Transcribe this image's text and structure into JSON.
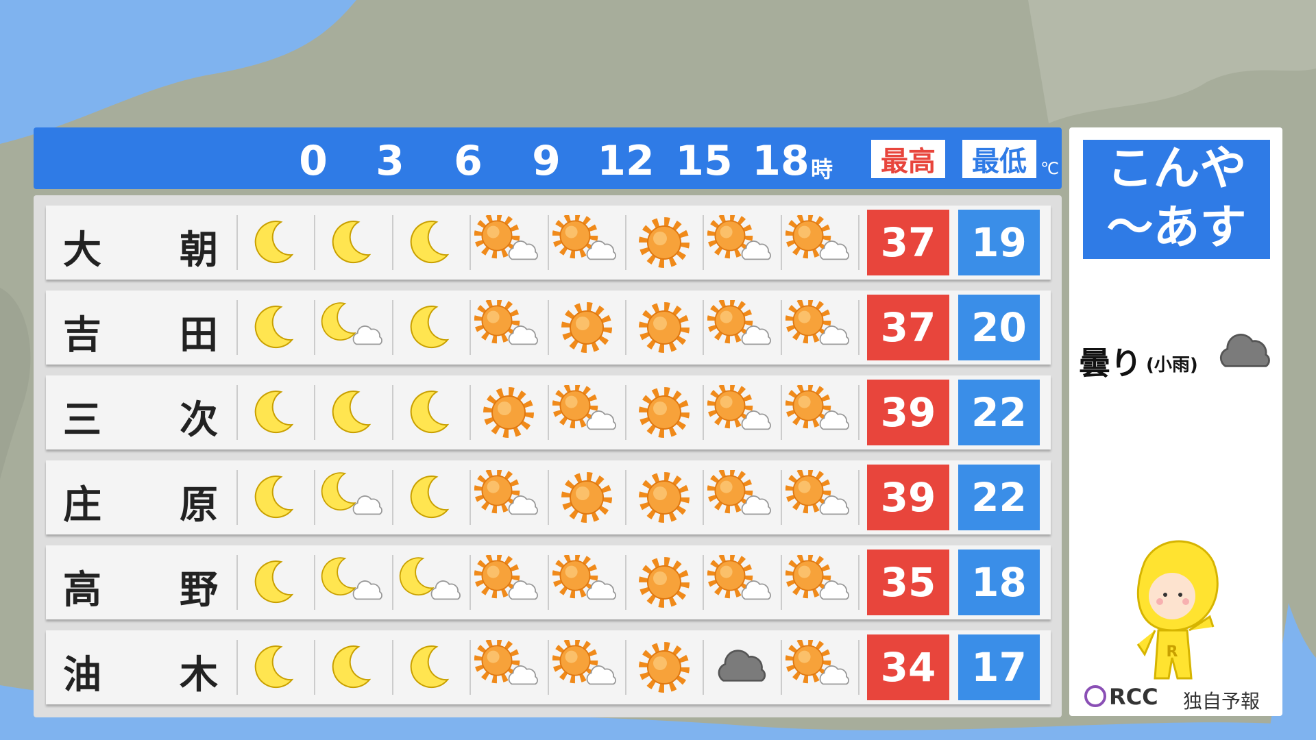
{
  "header": {
    "hours": [
      0,
      3,
      6,
      9,
      12,
      15,
      18
    ],
    "hour_unit": "時",
    "high_label": "最高",
    "low_label": "最低",
    "temp_unit": "℃"
  },
  "rows": [
    {
      "name": [
        "大",
        "朝"
      ],
      "high": 37,
      "low": 19
    },
    {
      "name": [
        "吉",
        "田"
      ],
      "high": 37,
      "low": 20
    },
    {
      "name": [
        "三",
        "次"
      ],
      "high": 39,
      "low": 22
    },
    {
      "name": [
        "庄",
        "原"
      ],
      "high": 39,
      "low": 22
    },
    {
      "name": [
        "高",
        "野"
      ],
      "high": 35,
      "low": 18
    },
    {
      "name": [
        "油",
        "木"
      ],
      "high": 34,
      "low": 17
    }
  ],
  "side_panel": {
    "title": [
      "こんや",
      "～あす"
    ],
    "weather": "曇り",
    "weather_note": "(小雨)",
    "logo": "RCC",
    "credit": "独自予報"
  }
}
